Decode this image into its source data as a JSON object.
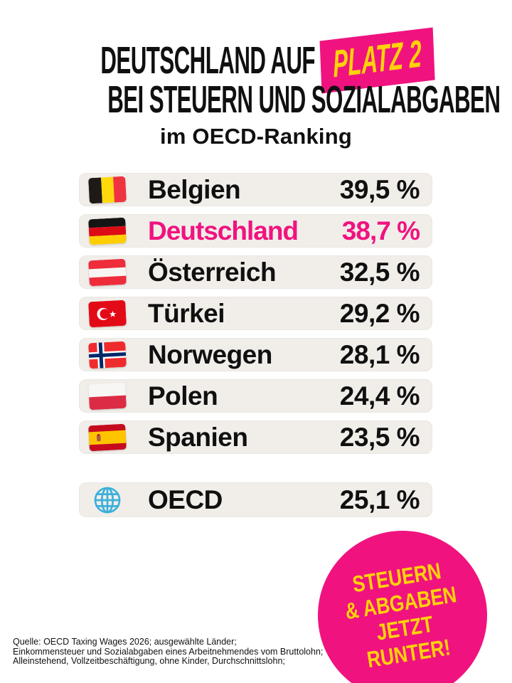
{
  "header": {
    "title_line1_prefix": "DEUTSCHLAND AUF",
    "title_badge": "PLATZ 2",
    "title_line2": "BEI STEUERN UND SOZIALABGABEN",
    "subtitle": "im OECD-Ranking"
  },
  "colors": {
    "accent_pink": "#f0137f",
    "accent_yellow": "#ffd20a",
    "row_background": "#f1eeea",
    "text_black": "#101010"
  },
  "ranking": {
    "rows": [
      {
        "country": "Belgien",
        "value": "39,5 %",
        "flag": "belgium",
        "highlight": false
      },
      {
        "country": "Deutschland",
        "value": "38,7 %",
        "flag": "germany",
        "highlight": true
      },
      {
        "country": "Österreich",
        "value": "32,5 %",
        "flag": "austria",
        "highlight": false
      },
      {
        "country": "Türkei",
        "value": "29,2 %",
        "flag": "turkey",
        "highlight": false
      },
      {
        "country": "Norwegen",
        "value": "28,1 %",
        "flag": "norway",
        "highlight": false
      },
      {
        "country": "Polen",
        "value": "24,4 %",
        "flag": "poland",
        "highlight": false
      },
      {
        "country": "Spanien",
        "value": "23,5 %",
        "flag": "spain",
        "highlight": false
      }
    ],
    "summary_row": {
      "label": "OECD",
      "value": "25,1 %",
      "flag": "globe"
    }
  },
  "badge": {
    "lines": [
      "STEUERN",
      "& ABGABEN",
      "JETZT",
      "RUNTER!"
    ]
  },
  "source": {
    "lines": [
      "Quelle: OECD Taxing Wages 2026; ausgewählte Länder;",
      "Einkommensteuer und Sozialabgaben eines Arbeitnehmendes vom Bruttolohn;",
      "Alleinstehend, Vollzeitbeschäftigung, ohne Kinder, Durchschnittslohn;"
    ]
  },
  "chart_data": {
    "type": "table",
    "title": "Deutschland auf Platz 2 bei Steuern und Sozialabgaben im OECD-Ranking",
    "categories": [
      "Belgien",
      "Deutschland",
      "Österreich",
      "Türkei",
      "Norwegen",
      "Polen",
      "Spanien",
      "OECD"
    ],
    "values": [
      39.5,
      38.7,
      32.5,
      29.2,
      28.1,
      24.4,
      23.5,
      25.1
    ],
    "unit": "%",
    "highlighted_category": "Deutschland",
    "annotation": "STEUERN & ABGABEN JETZT RUNTER!"
  }
}
